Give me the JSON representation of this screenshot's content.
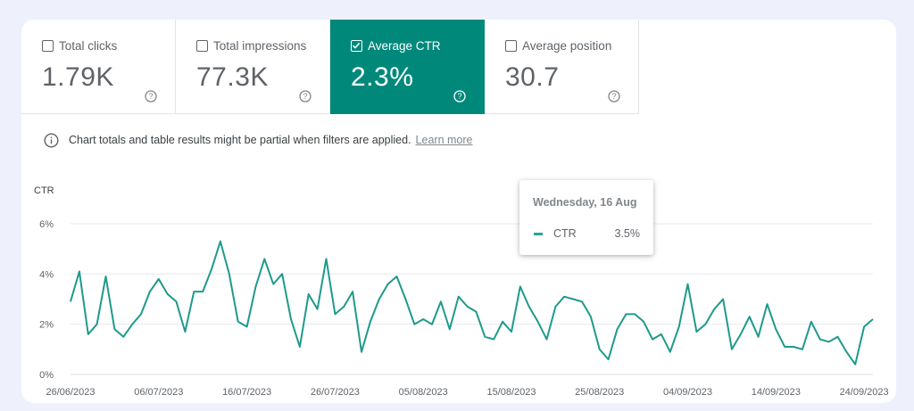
{
  "metrics": [
    {
      "label": "Total clicks",
      "value": "1.79K",
      "checked": false
    },
    {
      "label": "Total impressions",
      "value": "77.3K",
      "checked": false
    },
    {
      "label": "Average CTR",
      "value": "2.3%",
      "checked": true
    },
    {
      "label": "Average position",
      "value": "30.7",
      "checked": false
    }
  ],
  "notice": {
    "text": "Chart totals and table results might be partial when filters are applied.",
    "link": "Learn more"
  },
  "tooltip": {
    "date": "Wednesday, 16 Aug",
    "series": "CTR",
    "value": "3.5%"
  },
  "colors": {
    "accent": "#00897b",
    "line": "#1e9a8a",
    "grid": "#e8eaed"
  },
  "chart_data": {
    "type": "line",
    "ylabel": "CTR",
    "ylim": [
      0,
      6
    ],
    "yticks": [
      "0%",
      "2%",
      "4%",
      "6%"
    ],
    "yticks_values": [
      0,
      2,
      4,
      6
    ],
    "xlabels": [
      "26/06/2023",
      "06/07/2023",
      "16/07/2023",
      "26/07/2023",
      "05/08/2023",
      "15/08/2023",
      "25/08/2023",
      "04/09/2023",
      "14/09/2023",
      "24/09/2023"
    ],
    "x_start": "26/06/2023",
    "x_end": "25/09/2023",
    "grid": true,
    "series": [
      {
        "name": "CTR",
        "values": [
          2.9,
          4.1,
          1.6,
          2.0,
          3.9,
          1.8,
          1.5,
          2.0,
          2.4,
          3.3,
          3.8,
          3.2,
          2.9,
          1.7,
          3.3,
          3.3,
          4.2,
          5.3,
          4.0,
          2.1,
          1.9,
          3.5,
          4.6,
          3.6,
          4.0,
          2.2,
          1.1,
          3.2,
          2.6,
          4.6,
          2.4,
          2.7,
          3.3,
          0.9,
          2.1,
          3.0,
          3.6,
          3.9,
          3.0,
          2.0,
          2.2,
          2.0,
          2.9,
          1.8,
          3.1,
          2.7,
          2.5,
          1.5,
          1.4,
          2.1,
          1.7,
          3.5,
          2.7,
          2.1,
          1.4,
          2.7,
          3.1,
          3.0,
          2.9,
          2.3,
          1.0,
          0.6,
          1.8,
          2.4,
          2.4,
          2.1,
          1.4,
          1.6,
          0.9,
          1.9,
          3.6,
          1.7,
          2.0,
          2.6,
          3.0,
          1.0,
          1.6,
          2.3,
          1.5,
          2.8,
          1.8,
          1.1,
          1.1,
          1.0,
          2.1,
          1.4,
          1.3,
          1.5,
          0.9,
          0.4,
          1.9,
          2.2
        ]
      }
    ]
  }
}
